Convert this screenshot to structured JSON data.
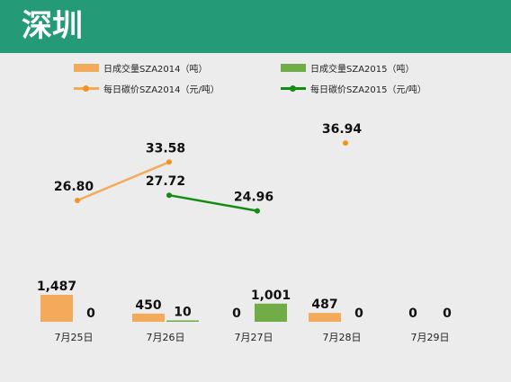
{
  "header": {
    "title": "深圳"
  },
  "colors": {
    "header_bg": "#259a76",
    "bar_2014": "#f4aa5b",
    "bar_2015": "#70ad47",
    "line_2014": "#f4aa5b",
    "dot_2014": "#f5921e",
    "line_2015": "#128c12"
  },
  "legend": {
    "vol_2014": "日成交量SZA2014（吨）",
    "vol_2015": "日成交量SZA2015（吨）",
    "price_2014": "每日碳价SZA2014（元/吨）",
    "price_2015": "每日碳价SZA2015（元/吨）"
  },
  "chart_data": {
    "type": "bar+line",
    "categories": [
      "7月25日",
      "7月26日",
      "7月27日",
      "7月28日",
      "7月29日"
    ],
    "bar_series": [
      {
        "name": "日成交量SZA2014（吨）",
        "values": [
          1487,
          450,
          0,
          487,
          0
        ],
        "labels": [
          "1,487",
          "450",
          "0",
          "487",
          "0"
        ]
      },
      {
        "name": "日成交量SZA2015（吨）",
        "values": [
          0,
          10,
          1001,
          0,
          0
        ],
        "labels": [
          "0",
          "10",
          "1,001",
          "0",
          "0"
        ]
      }
    ],
    "line_series": [
      {
        "name": "每日碳价SZA2014（元/吨）",
        "values": [
          26.8,
          33.58,
          null,
          36.94,
          null
        ],
        "labels": [
          "26.80",
          "33.58",
          "",
          "36.94",
          ""
        ]
      },
      {
        "name": "每日碳价SZA2015（元/吨）",
        "values": [
          null,
          27.72,
          24.96,
          null,
          null
        ],
        "labels": [
          "",
          "27.72",
          "24.96",
          "",
          ""
        ]
      }
    ]
  }
}
